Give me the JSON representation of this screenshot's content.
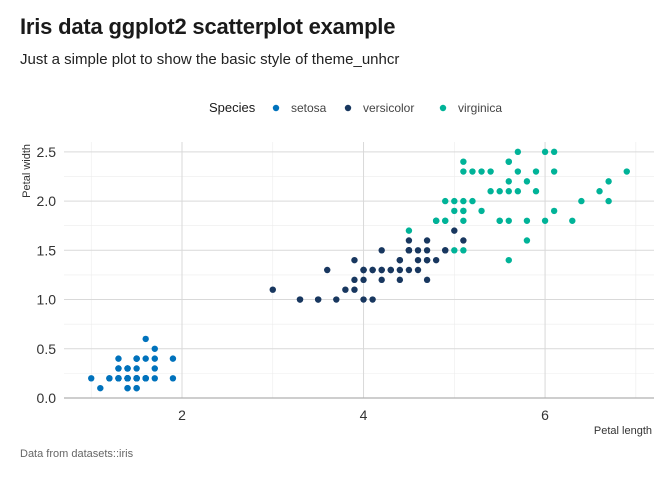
{
  "header": {
    "title": "Iris data ggplot2 scatterplot example",
    "subtitle": "Just a simple plot to show the basic style of theme_unhcr"
  },
  "caption": "Data from datasets::iris",
  "chart_data": {
    "type": "scatter",
    "title": "Iris data ggplot2 scatterplot example",
    "subtitle": "Just a simple plot to show the basic style of theme_unhcr",
    "xlabel": "Petal length",
    "ylabel": "Petal width",
    "xlim": [
      0.7,
      7.2
    ],
    "ylim": [
      0.0,
      2.6
    ],
    "x_ticks": [
      {
        "value": 2,
        "label": "2"
      },
      {
        "value": 4,
        "label": "4"
      },
      {
        "value": 6,
        "label": "6"
      }
    ],
    "y_ticks": [
      {
        "value": 0.0,
        "label": "0.0"
      },
      {
        "value": 0.5,
        "label": "0.5"
      },
      {
        "value": 1.0,
        "label": "1.0"
      },
      {
        "value": 1.5,
        "label": "1.5"
      },
      {
        "value": 2.0,
        "label": "2.0"
      },
      {
        "value": 2.5,
        "label": "2.5"
      }
    ],
    "grid": true,
    "legend": {
      "title": "Species",
      "position": "top"
    },
    "series": [
      {
        "name": "setosa",
        "color": "#0072bc",
        "points": [
          [
            1.4,
            0.2
          ],
          [
            1.4,
            0.2
          ],
          [
            1.3,
            0.2
          ],
          [
            1.5,
            0.2
          ],
          [
            1.4,
            0.2
          ],
          [
            1.7,
            0.4
          ],
          [
            1.4,
            0.3
          ],
          [
            1.5,
            0.2
          ],
          [
            1.4,
            0.2
          ],
          [
            1.5,
            0.1
          ],
          [
            1.5,
            0.2
          ],
          [
            1.6,
            0.2
          ],
          [
            1.4,
            0.1
          ],
          [
            1.1,
            0.1
          ],
          [
            1.2,
            0.2
          ],
          [
            1.5,
            0.4
          ],
          [
            1.3,
            0.4
          ],
          [
            1.4,
            0.3
          ],
          [
            1.7,
            0.3
          ],
          [
            1.5,
            0.3
          ],
          [
            1.7,
            0.2
          ],
          [
            1.5,
            0.4
          ],
          [
            1.0,
            0.2
          ],
          [
            1.7,
            0.5
          ],
          [
            1.9,
            0.2
          ],
          [
            1.6,
            0.2
          ],
          [
            1.6,
            0.4
          ],
          [
            1.5,
            0.2
          ],
          [
            1.4,
            0.2
          ],
          [
            1.6,
            0.2
          ],
          [
            1.6,
            0.2
          ],
          [
            1.5,
            0.4
          ],
          [
            1.5,
            0.1
          ],
          [
            1.4,
            0.2
          ],
          [
            1.5,
            0.2
          ],
          [
            1.2,
            0.2
          ],
          [
            1.3,
            0.2
          ],
          [
            1.4,
            0.1
          ],
          [
            1.3,
            0.2
          ],
          [
            1.5,
            0.2
          ],
          [
            1.3,
            0.3
          ],
          [
            1.3,
            0.3
          ],
          [
            1.3,
            0.2
          ],
          [
            1.6,
            0.6
          ],
          [
            1.9,
            0.4
          ],
          [
            1.4,
            0.3
          ],
          [
            1.6,
            0.2
          ],
          [
            1.4,
            0.2
          ],
          [
            1.5,
            0.2
          ],
          [
            1.4,
            0.2
          ]
        ]
      },
      {
        "name": "versicolor",
        "color": "#18375f",
        "points": [
          [
            4.7,
            1.4
          ],
          [
            4.5,
            1.5
          ],
          [
            4.9,
            1.5
          ],
          [
            4.0,
            1.3
          ],
          [
            4.6,
            1.5
          ],
          [
            4.5,
            1.3
          ],
          [
            4.7,
            1.6
          ],
          [
            3.3,
            1.0
          ],
          [
            4.6,
            1.3
          ],
          [
            3.9,
            1.4
          ],
          [
            3.5,
            1.0
          ],
          [
            4.2,
            1.5
          ],
          [
            4.0,
            1.0
          ],
          [
            4.7,
            1.4
          ],
          [
            3.6,
            1.3
          ],
          [
            4.4,
            1.4
          ],
          [
            4.5,
            1.5
          ],
          [
            4.1,
            1.0
          ],
          [
            4.5,
            1.5
          ],
          [
            3.9,
            1.1
          ],
          [
            4.8,
            1.8
          ],
          [
            4.0,
            1.3
          ],
          [
            4.9,
            1.5
          ],
          [
            4.7,
            1.2
          ],
          [
            4.3,
            1.3
          ],
          [
            4.4,
            1.4
          ],
          [
            4.8,
            1.4
          ],
          [
            5.0,
            1.7
          ],
          [
            4.5,
            1.5
          ],
          [
            3.5,
            1.0
          ],
          [
            3.8,
            1.1
          ],
          [
            3.7,
            1.0
          ],
          [
            3.9,
            1.2
          ],
          [
            5.1,
            1.6
          ],
          [
            4.5,
            1.5
          ],
          [
            4.5,
            1.6
          ],
          [
            4.7,
            1.5
          ],
          [
            4.4,
            1.3
          ],
          [
            4.1,
            1.3
          ],
          [
            4.0,
            1.3
          ],
          [
            4.4,
            1.2
          ],
          [
            4.6,
            1.4
          ],
          [
            4.0,
            1.2
          ],
          [
            3.3,
            1.0
          ],
          [
            4.2,
            1.3
          ],
          [
            4.2,
            1.2
          ],
          [
            4.2,
            1.3
          ],
          [
            4.3,
            1.3
          ],
          [
            3.0,
            1.1
          ],
          [
            4.1,
            1.3
          ]
        ]
      },
      {
        "name": "virginica",
        "color": "#00b398",
        "points": [
          [
            6.0,
            2.5
          ],
          [
            5.1,
            1.9
          ],
          [
            5.9,
            2.1
          ],
          [
            5.6,
            1.8
          ],
          [
            5.8,
            2.2
          ],
          [
            6.6,
            2.1
          ],
          [
            4.5,
            1.7
          ],
          [
            6.3,
            1.8
          ],
          [
            5.8,
            1.8
          ],
          [
            6.1,
            2.5
          ],
          [
            5.1,
            2.0
          ],
          [
            5.3,
            1.9
          ],
          [
            5.5,
            2.1
          ],
          [
            5.0,
            2.0
          ],
          [
            5.1,
            2.4
          ],
          [
            5.3,
            2.3
          ],
          [
            5.5,
            1.8
          ],
          [
            6.7,
            2.2
          ],
          [
            6.9,
            2.3
          ],
          [
            5.0,
            1.5
          ],
          [
            5.7,
            2.3
          ],
          [
            4.9,
            2.0
          ],
          [
            6.7,
            2.0
          ],
          [
            4.9,
            1.8
          ],
          [
            5.7,
            2.1
          ],
          [
            6.0,
            1.8
          ],
          [
            4.8,
            1.8
          ],
          [
            4.9,
            1.8
          ],
          [
            5.6,
            2.1
          ],
          [
            5.8,
            1.6
          ],
          [
            6.1,
            1.9
          ],
          [
            6.4,
            2.0
          ],
          [
            5.6,
            2.2
          ],
          [
            5.1,
            1.5
          ],
          [
            5.6,
            1.4
          ],
          [
            6.1,
            2.3
          ],
          [
            5.6,
            2.4
          ],
          [
            5.5,
            1.8
          ],
          [
            4.8,
            1.8
          ],
          [
            5.4,
            2.1
          ],
          [
            5.6,
            2.4
          ],
          [
            5.1,
            2.3
          ],
          [
            5.1,
            1.9
          ],
          [
            5.9,
            2.3
          ],
          [
            5.7,
            2.5
          ],
          [
            5.2,
            2.3
          ],
          [
            5.0,
            1.9
          ],
          [
            5.2,
            2.0
          ],
          [
            5.4,
            2.3
          ],
          [
            5.1,
            1.8
          ]
        ]
      }
    ]
  }
}
